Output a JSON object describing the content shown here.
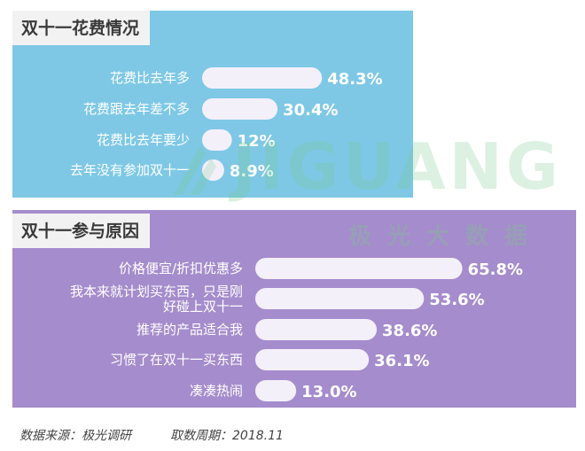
{
  "footer": {
    "source": "数据来源：极光调研",
    "period": "取数周期：2018.11"
  },
  "watermark": {
    "logo_text": "JIGUANG",
    "logo_subtext": "极光大数据"
  },
  "colors": {
    "panel1_bg": "#7ec8e6",
    "panel2_bg": "#a58ccc",
    "bar_fill": "#f4f0fa"
  },
  "chart_data": [
    {
      "type": "bar",
      "orientation": "horizontal",
      "title": "双十一花费情况",
      "categories": [
        "花费比去年多",
        "花费跟去年差不多",
        "花费比去年要少",
        "去年没有参加双十一"
      ],
      "values": [
        48.3,
        30.4,
        12,
        8.9
      ],
      "value_labels": [
        "48.3%",
        "30.4%",
        "12%",
        "8.9%"
      ],
      "unit": "%"
    },
    {
      "type": "bar",
      "orientation": "horizontal",
      "title": "双十一参与原因",
      "categories": [
        "价格便宜/折扣优惠多",
        "我本来就计划买东西，只是刚好碰上双十一",
        "推荐的产品适合我",
        "习惯了在双十一买东西",
        "凑凑热闹"
      ],
      "values": [
        65.8,
        53.6,
        38.6,
        36.1,
        13.0
      ],
      "value_labels": [
        "65.8%",
        "53.6%",
        "38.6%",
        "36.1%",
        "13.0%"
      ],
      "unit": "%"
    }
  ]
}
